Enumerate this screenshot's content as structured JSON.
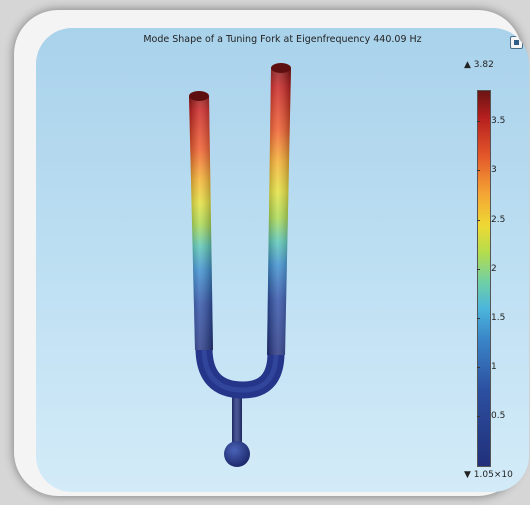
{
  "plot": {
    "title": "Mode Shape of a Tuning Fork at Eigenfrequency 440.09 Hz"
  },
  "colorbar": {
    "max_label": "▲ 3.82",
    "min_label": "▼ 1.05×10",
    "max_value": 3.82,
    "min_value": 0,
    "ticks": [
      "3.5",
      "3",
      "2.5",
      "2",
      "1.5",
      "1",
      "0.5"
    ],
    "tick_values": [
      3.5,
      3,
      2.5,
      2,
      1.5,
      1,
      0.5
    ],
    "colormap": [
      "#21307a",
      "#3a86c8",
      "#6fcfa6",
      "#eed934",
      "#e3552a",
      "#6b1414"
    ]
  },
  "icons": {
    "corner": "window-restore-icon"
  }
}
